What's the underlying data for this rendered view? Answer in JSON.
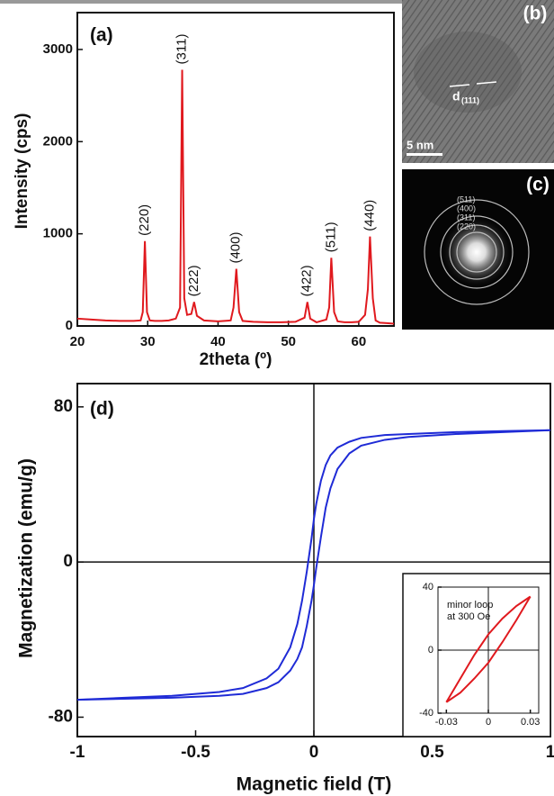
{
  "chart_data": [
    {
      "type": "line",
      "panel_label": "(a)",
      "xlabel": "2theta (º)",
      "ylabel": "Intensity (cps)",
      "xlim": [
        20,
        65
      ],
      "ylim": [
        0,
        3400
      ],
      "xticks": [
        20,
        30,
        40,
        50,
        60
      ],
      "yticks": [
        0,
        1000,
        2000,
        3000
      ],
      "x": [
        20,
        22,
        24,
        26,
        28,
        29,
        29.3,
        29.6,
        29.9,
        30.3,
        31,
        32,
        33,
        34,
        34.6,
        34.9,
        35.2,
        35.6,
        36.2,
        36.6,
        37,
        38,
        40,
        41.8,
        42.2,
        42.6,
        43,
        43.5,
        45,
        47,
        49,
        51,
        52.3,
        52.7,
        53.1,
        54,
        55.4,
        55.8,
        56.1,
        56.5,
        57,
        58,
        59,
        60,
        60.9,
        61.3,
        61.6,
        62,
        62.4,
        63,
        64,
        65
      ],
      "series": [
        {
          "color": "#e0191e",
          "values": [
            80,
            70,
            60,
            55,
            55,
            60,
            150,
            920,
            150,
            60,
            55,
            55,
            60,
            80,
            200,
            2780,
            300,
            120,
            130,
            260,
            110,
            60,
            50,
            60,
            200,
            620,
            150,
            55,
            45,
            40,
            40,
            45,
            90,
            260,
            80,
            40,
            70,
            200,
            740,
            150,
            50,
            40,
            40,
            45,
            120,
            400,
            970,
            300,
            60,
            35,
            30,
            25
          ]
        }
      ],
      "peaks": [
        {
          "label": "(220)",
          "x": 29.6,
          "y": 920
        },
        {
          "label": "(311)",
          "x": 34.9,
          "y": 2780
        },
        {
          "label": "(222)",
          "x": 36.6,
          "y": 260
        },
        {
          "label": "(400)",
          "x": 42.6,
          "y": 620
        },
        {
          "label": "(422)",
          "x": 52.7,
          "y": 260
        },
        {
          "label": "(511)",
          "x": 56.1,
          "y": 740
        },
        {
          "label": "(440)",
          "x": 61.6,
          "y": 970
        }
      ]
    },
    {
      "type": "image",
      "panel_label": "(b)",
      "spacing_label": "d",
      "spacing_index": "(111)",
      "scale_bar": "5 nm"
    },
    {
      "type": "image",
      "panel_label": "(c)",
      "rings": [
        "(511)",
        "(400)",
        "(311)",
        "(220)"
      ]
    },
    {
      "type": "line",
      "panel_label": "(d)",
      "xlabel": "Magnetic field (T)",
      "ylabel": "Magnetization (emu/g)",
      "xlim": [
        -1,
        1
      ],
      "ylim": [
        -90,
        92
      ],
      "xticks": [
        -1,
        -0.5,
        0,
        0.5,
        1
      ],
      "yticks": [
        -80,
        0,
        80
      ],
      "x": [
        -1,
        -0.8,
        -0.6,
        -0.4,
        -0.3,
        -0.2,
        -0.15,
        -0.1,
        -0.07,
        -0.05,
        -0.03,
        -0.01,
        0,
        0.01,
        0.03,
        0.05,
        0.07,
        0.1,
        0.15,
        0.2,
        0.3,
        0.4,
        0.6,
        0.8,
        1
      ],
      "series": [
        {
          "color": "#1f2bd6",
          "values": [
            -71,
            -70,
            -69,
            -67,
            -65,
            -60,
            -55,
            -44,
            -32,
            -20,
            -5,
            12,
            22,
            30,
            42,
            50,
            55,
            59,
            62,
            64,
            65.5,
            66,
            67,
            67.5,
            68
          ]
        },
        {
          "color": "#1f2bd6",
          "values": [
            -71,
            -70.5,
            -70,
            -69,
            -68,
            -65,
            -62,
            -56,
            -50,
            -44,
            -33,
            -20,
            -12,
            -3,
            13,
            28,
            38,
            48,
            56,
            60,
            63,
            64.5,
            66,
            67,
            68
          ]
        }
      ]
    },
    {
      "type": "line",
      "annotation": [
        "minor loop",
        "at 300 Oe"
      ],
      "xlim": [
        -0.036,
        0.036
      ],
      "ylim": [
        -40,
        40
      ],
      "xticks": [
        -0.03,
        0,
        0.03
      ],
      "yticks": [
        -40,
        0,
        40
      ],
      "x": [
        -0.03,
        -0.02,
        -0.01,
        0,
        0.01,
        0.02,
        0.03
      ],
      "series": [
        {
          "color": "#e0191e",
          "values": [
            -33,
            -18,
            -3,
            10,
            20,
            28,
            34
          ]
        },
        {
          "color": "#e0191e",
          "values": [
            -33,
            -27,
            -18,
            -8,
            5,
            19,
            34
          ]
        }
      ]
    }
  ]
}
